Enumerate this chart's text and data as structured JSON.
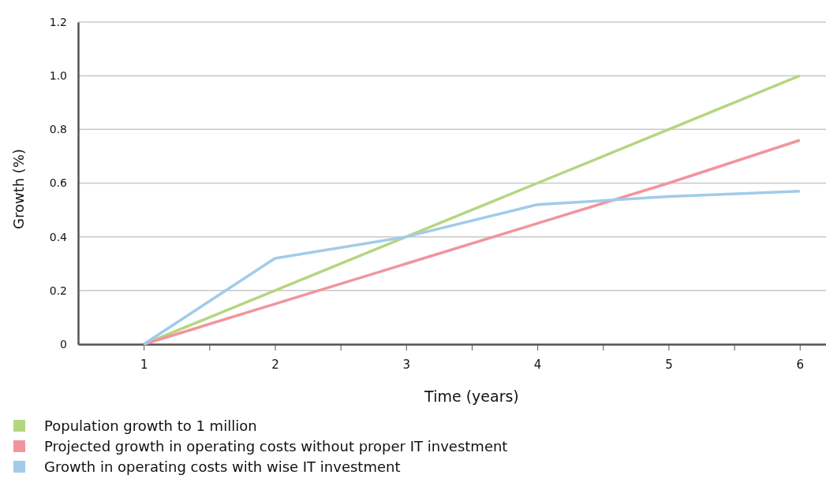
{
  "chart_data": {
    "type": "line",
    "xlabel": "Time (years)",
    "ylabel": "Growth (%)",
    "x": [
      1,
      2,
      3,
      4,
      5,
      6
    ],
    "series": [
      {
        "name": "Population growth to 1 million",
        "color": "#b5d67f",
        "values": [
          0,
          0.2,
          0.4,
          0.6,
          0.8,
          1.0
        ]
      },
      {
        "name": "Projected growth in operating costs without proper IT investment",
        "color": "#f2949c",
        "values": [
          0,
          0.15,
          0.3,
          0.45,
          0.6,
          0.76
        ]
      },
      {
        "name": "Growth in operating costs with wise IT investment",
        "color": "#a2cbea",
        "values": [
          0,
          0.32,
          0.4,
          0.52,
          0.55,
          0.57
        ]
      }
    ],
    "xlim": [
      0.5,
      6.2
    ],
    "xticks": [
      1,
      {
        "value": 1.5,
        "label": null
      },
      2,
      {
        "value": 2.5,
        "label": null
      },
      3,
      {
        "value": 3.5,
        "label": null
      },
      4,
      {
        "value": 4.5,
        "label": null
      },
      5,
      {
        "value": 5.5,
        "label": null
      },
      6
    ],
    "ylim": [
      0,
      1.2
    ],
    "yticks": [
      0,
      {
        "value": 0.2,
        "label": "0.2"
      },
      {
        "value": 0.4,
        "label": "0.4"
      },
      {
        "value": 0.6,
        "label": "0.6"
      },
      {
        "value": 0.8,
        "label": "0.8"
      },
      {
        "value": 1.0,
        "label": "1.0"
      },
      {
        "value": 1.2,
        "label": "1.2"
      }
    ],
    "grid": "y",
    "legend": "bottom",
    "marker": "none",
    "line_style": "solid"
  }
}
